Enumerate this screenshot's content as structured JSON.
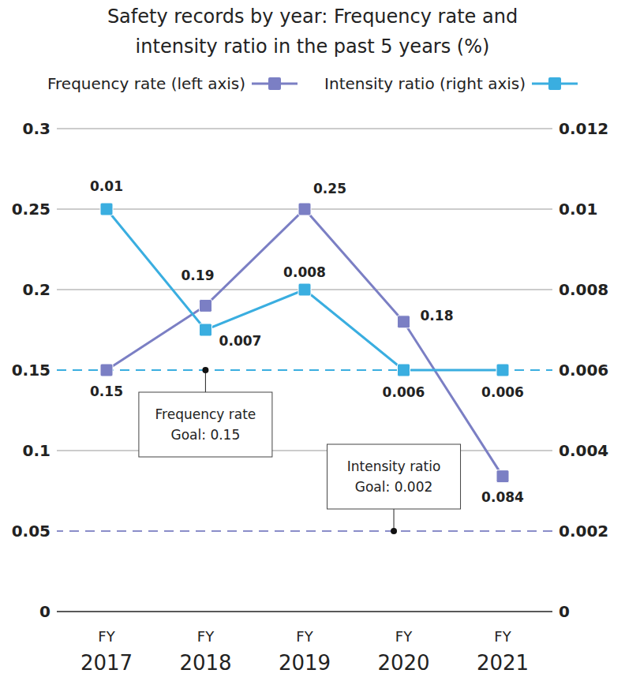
{
  "chart_data": {
    "type": "line",
    "title": "Safety records by year: Frequency rate and intensity ratio in the past 5 years (%)",
    "categories": [
      "FY 2017",
      "FY 2018",
      "FY 2019",
      "FY 2020",
      "FY 2021"
    ],
    "series": [
      {
        "name": "Frequency rate (left axis)",
        "color": "#7b7fc4",
        "marker": "square",
        "values": [
          0.15,
          0.19,
          0.25,
          0.18,
          0.084
        ]
      },
      {
        "name": "Intensity ratio (right axis)",
        "color": "#3aaee0",
        "marker": "square",
        "axis": "y2",
        "values": [
          0.01,
          0.007,
          0.008,
          0.006,
          0.006
        ]
      }
    ],
    "ylim": [
      0,
      0.3
    ],
    "yticks": [
      0,
      0.05,
      0.1,
      0.15,
      0.2,
      0.25,
      0.3
    ],
    "y2lim": [
      0,
      0.012
    ],
    "y2ticks": [
      0,
      0.002,
      0.004,
      0.006,
      0.008,
      0.01,
      0.012
    ],
    "grid": true,
    "data_labels": true,
    "legend": "top",
    "annotations": [
      {
        "text": [
          "Frequency rate",
          "Goal: 0.15"
        ],
        "value": 0.15,
        "axis": "y"
      },
      {
        "text": [
          "Intensity ratio",
          "Goal: 0.002"
        ],
        "value": 0.002,
        "axis": "y2"
      }
    ]
  }
}
